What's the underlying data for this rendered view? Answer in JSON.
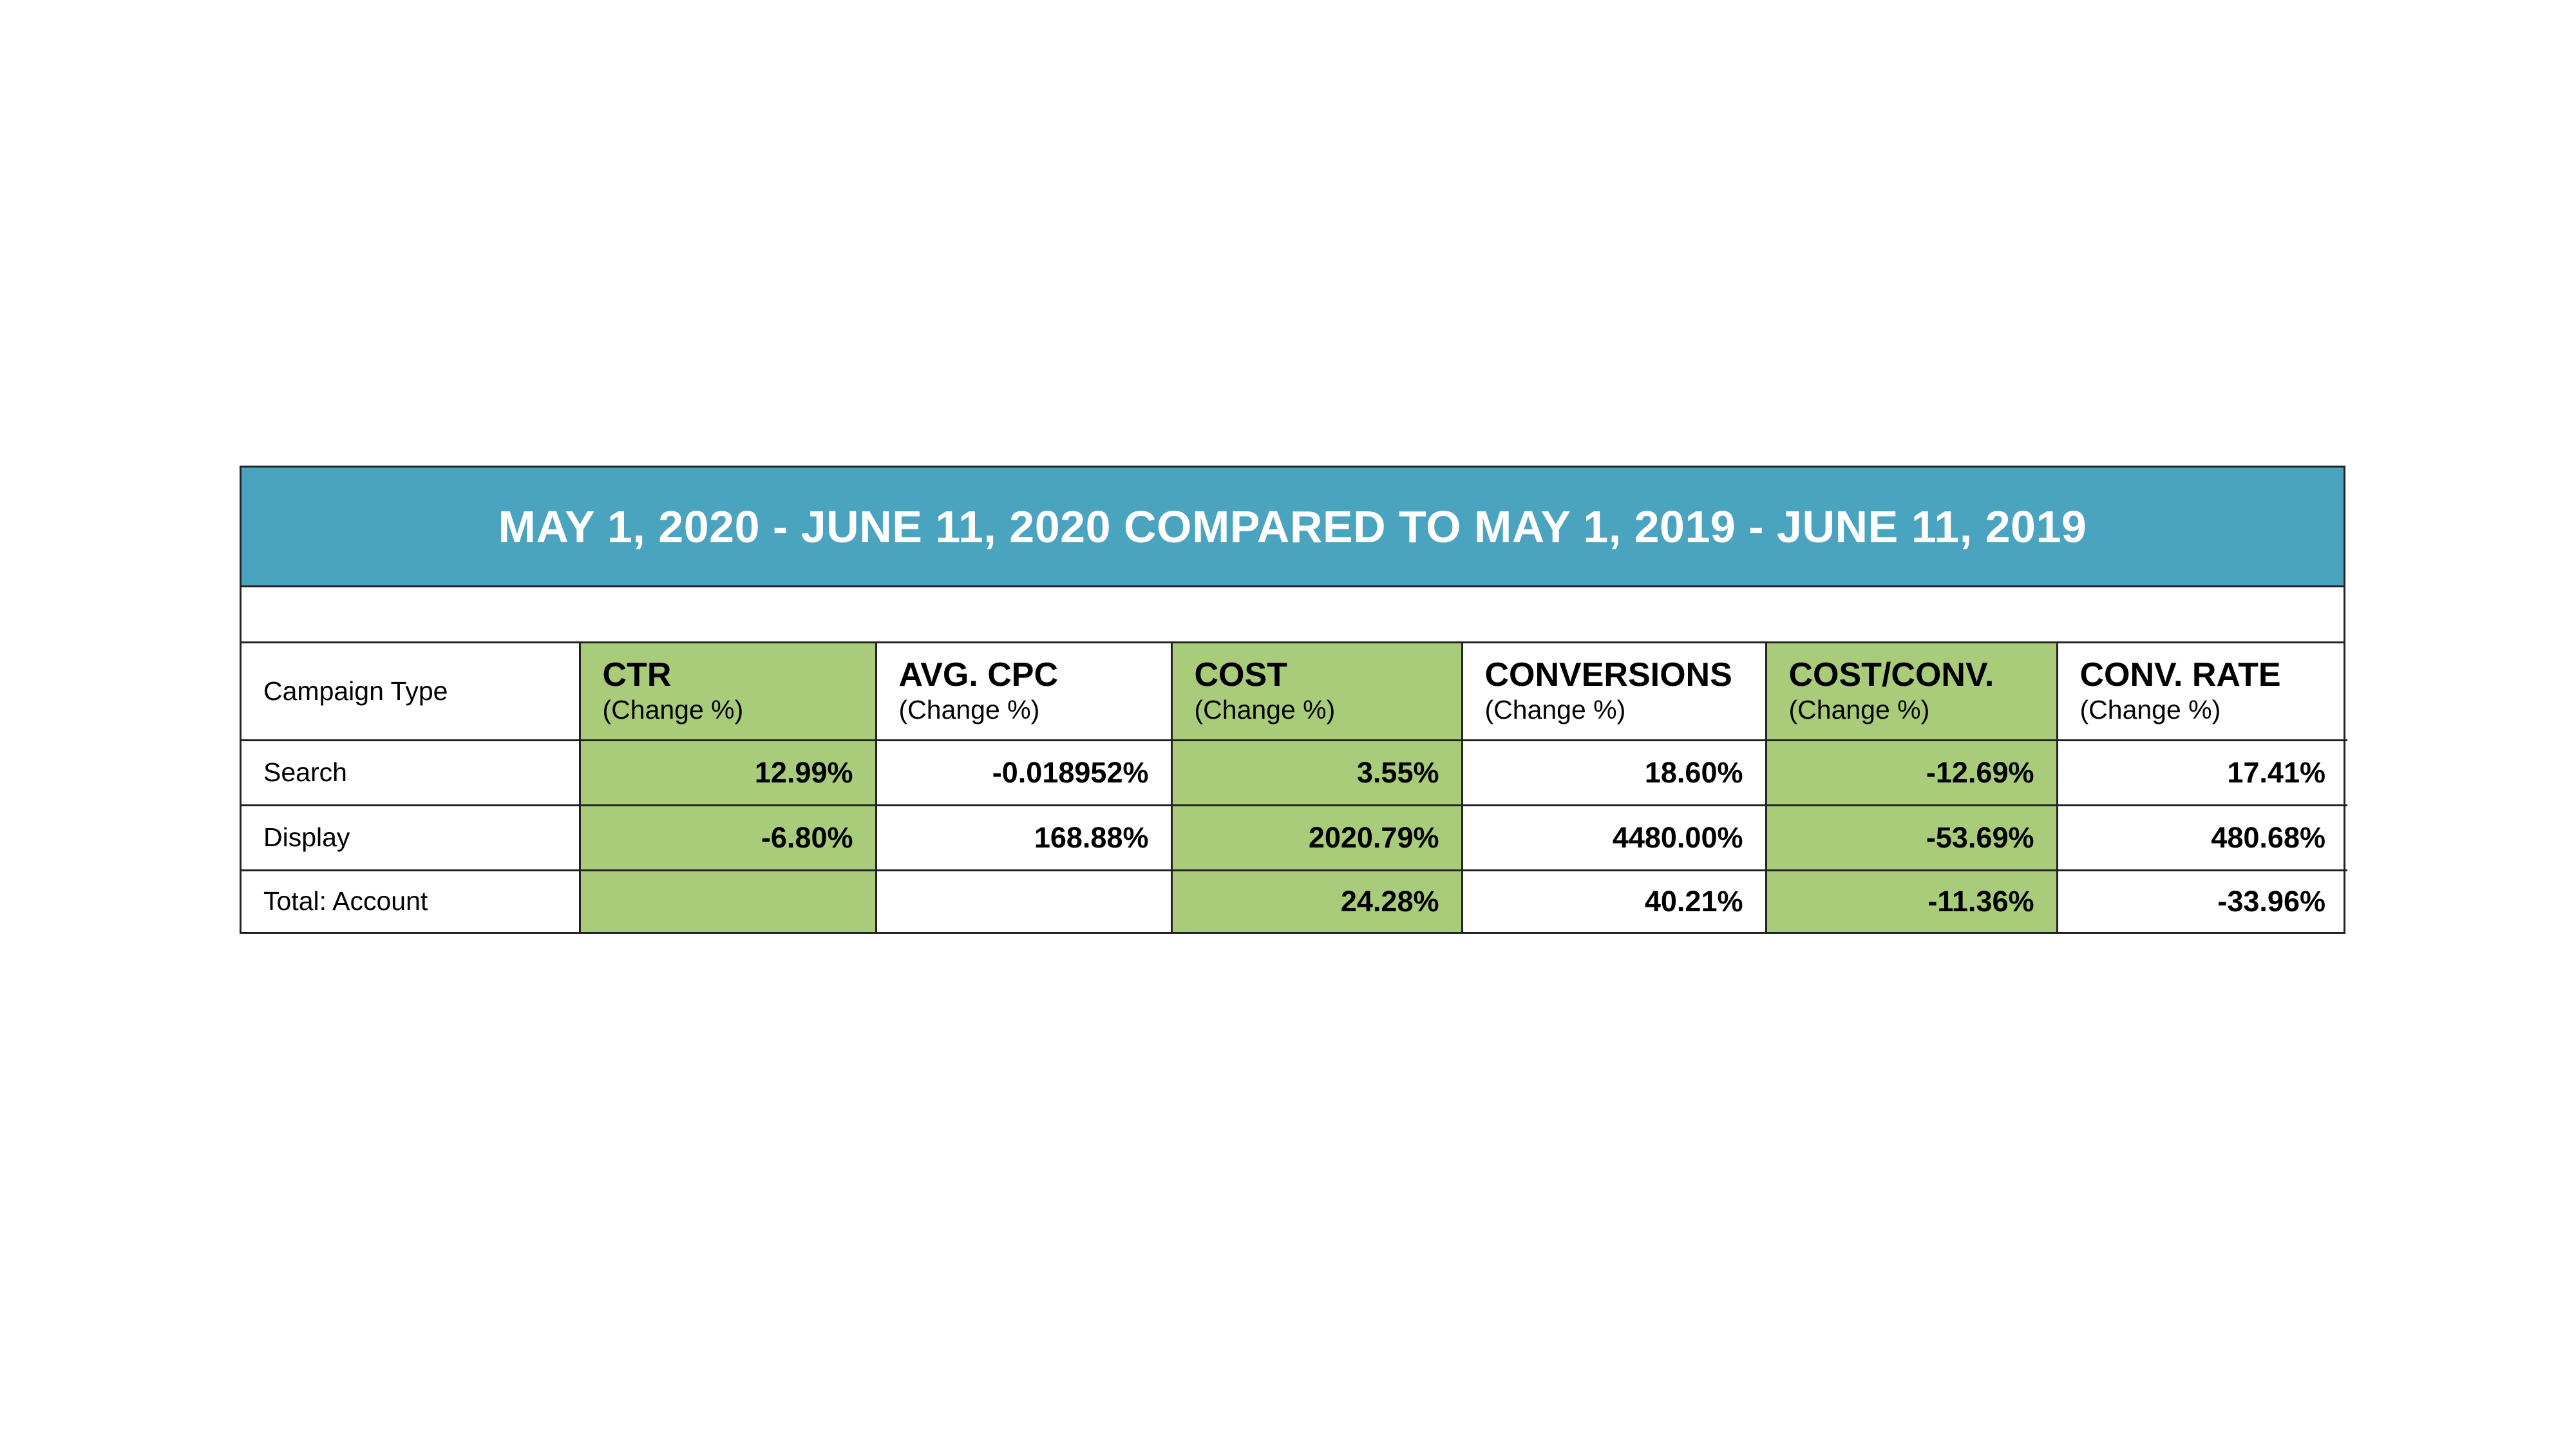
{
  "report": {
    "title": "MAY 1, 2020 - JUNE 11, 2020 COMPARED TO MAY 1, 2019 - JUNE 11, 2019",
    "row_header_label": "Campaign Type",
    "columns": [
      {
        "name": "CTR",
        "sub": "(Change %)",
        "highlighted": true
      },
      {
        "name": "AVG. CPC",
        "sub": "(Change %)",
        "highlighted": false
      },
      {
        "name": "COST",
        "sub": "(Change %)",
        "highlighted": true
      },
      {
        "name": "CONVERSIONS",
        "sub": "(Change %)",
        "highlighted": false
      },
      {
        "name": "COST/CONV.",
        "sub": "(Change %)",
        "highlighted": true
      },
      {
        "name": "CONV. RATE",
        "sub": "(Change %)",
        "highlighted": false
      }
    ],
    "rows": [
      {
        "label": "Search",
        "values": [
          "12.99%",
          "-0.018952%",
          "3.55%",
          "18.60%",
          "-12.69%",
          "17.41%"
        ]
      },
      {
        "label": "Display",
        "values": [
          "-6.80%",
          "168.88%",
          "2020.79%",
          "4480.00%",
          "-53.69%",
          "480.68%"
        ]
      },
      {
        "label": "Total: Account",
        "values": [
          "",
          "",
          "24.28%",
          "40.21%",
          "-11.36%",
          "-33.96%"
        ]
      }
    ]
  },
  "colors": {
    "title_background": "#4AA3BF",
    "title_text": "#FFFFFF",
    "highlight": "#A9CC7A",
    "border": "#222222",
    "background": "#FFFFFF"
  }
}
